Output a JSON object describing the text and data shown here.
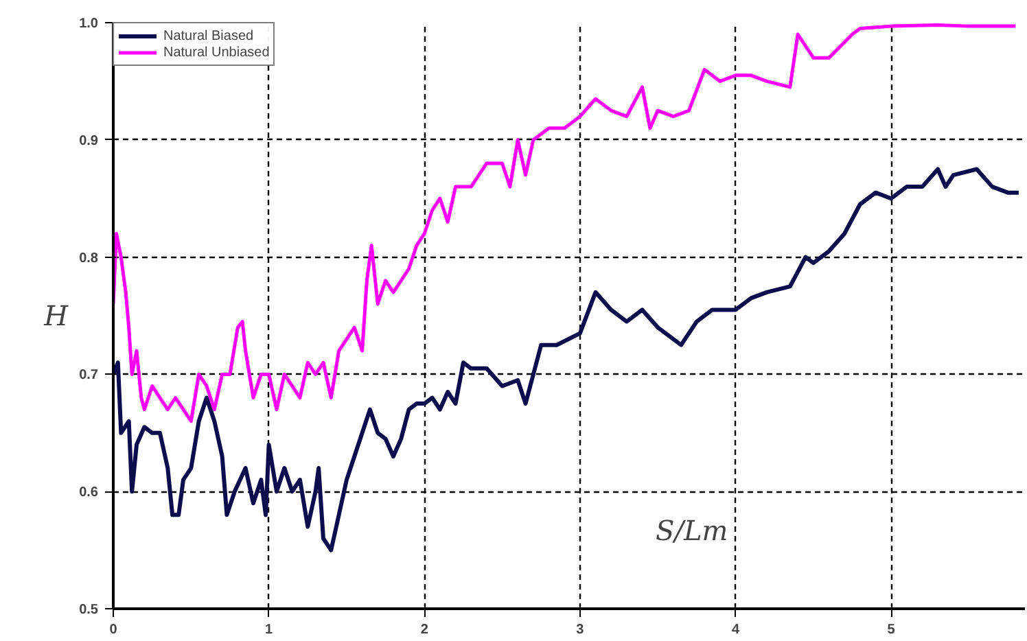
{
  "chart_data": {
    "type": "line",
    "xlabel": "S/Lm",
    "ylabel": "H",
    "xlim": [
      0,
      5.86
    ],
    "ylim": [
      0.5,
      1.0
    ],
    "xticks": [
      0,
      1,
      2,
      3,
      4,
      5
    ],
    "yticks": [
      {
        "value": 0.5,
        "label": "0.5"
      },
      {
        "value": 0.6,
        "label": "0.6"
      },
      {
        "value": 0.7,
        "label": "0.7"
      },
      {
        "value": 0.8,
        "label": "0.8"
      },
      {
        "value": 0.9,
        "label": "0.9"
      },
      {
        "value": 1,
        "label": "1.0"
      }
    ],
    "grid": true,
    "legend": "top left",
    "marker": "none",
    "line_style": "solid",
    "series": [
      {
        "name": "Natural Biased",
        "color": "#0d0d4d",
        "x": [
          0,
          0.03,
          0.05,
          0.1,
          0.12,
          0.15,
          0.2,
          0.25,
          0.3,
          0.35,
          0.38,
          0.42,
          0.45,
          0.5,
          0.55,
          0.6,
          0.65,
          0.7,
          0.73,
          0.78,
          0.85,
          0.9,
          0.95,
          0.98,
          1.0,
          1.05,
          1.1,
          1.15,
          1.2,
          1.25,
          1.3,
          1.32,
          1.35,
          1.4,
          1.45,
          1.5,
          1.55,
          1.6,
          1.65,
          1.7,
          1.75,
          1.8,
          1.85,
          1.9,
          1.95,
          2.0,
          2.05,
          2.1,
          2.15,
          2.2,
          2.25,
          2.3,
          2.4,
          2.5,
          2.6,
          2.65,
          2.7,
          2.75,
          2.85,
          3.0,
          3.1,
          3.2,
          3.3,
          3.4,
          3.5,
          3.6,
          3.65,
          3.75,
          3.85,
          4.0,
          4.1,
          4.2,
          4.35,
          4.45,
          4.5,
          4.6,
          4.7,
          4.8,
          4.9,
          5.0,
          5.1,
          5.2,
          5.3,
          5.35,
          5.4,
          5.55,
          5.65,
          5.75,
          5.82
        ],
        "values": [
          0.7,
          0.71,
          0.65,
          0.66,
          0.6,
          0.64,
          0.655,
          0.65,
          0.65,
          0.62,
          0.58,
          0.58,
          0.61,
          0.62,
          0.66,
          0.68,
          0.66,
          0.63,
          0.58,
          0.6,
          0.62,
          0.59,
          0.61,
          0.58,
          0.64,
          0.6,
          0.62,
          0.6,
          0.61,
          0.57,
          0.6,
          0.62,
          0.56,
          0.55,
          0.58,
          0.61,
          0.63,
          0.65,
          0.67,
          0.65,
          0.645,
          0.63,
          0.645,
          0.67,
          0.675,
          0.675,
          0.68,
          0.67,
          0.685,
          0.675,
          0.71,
          0.705,
          0.705,
          0.69,
          0.695,
          0.675,
          0.7,
          0.725,
          0.725,
          0.735,
          0.77,
          0.755,
          0.745,
          0.755,
          0.74,
          0.73,
          0.725,
          0.745,
          0.755,
          0.755,
          0.765,
          0.77,
          0.775,
          0.8,
          0.795,
          0.805,
          0.82,
          0.845,
          0.855,
          0.85,
          0.86,
          0.86,
          0.875,
          0.86,
          0.87,
          0.875,
          0.86,
          0.855,
          0.855
        ]
      },
      {
        "name": "Natural Unbiased",
        "color": "#ff00ff",
        "x": [
          0,
          0.02,
          0.05,
          0.08,
          0.1,
          0.12,
          0.15,
          0.18,
          0.2,
          0.25,
          0.3,
          0.35,
          0.4,
          0.45,
          0.5,
          0.55,
          0.6,
          0.65,
          0.7,
          0.75,
          0.8,
          0.83,
          0.85,
          0.9,
          0.95,
          1.0,
          1.05,
          1.1,
          1.15,
          1.2,
          1.25,
          1.3,
          1.35,
          1.4,
          1.45,
          1.5,
          1.55,
          1.6,
          1.63,
          1.66,
          1.7,
          1.75,
          1.8,
          1.85,
          1.9,
          1.95,
          2.0,
          2.05,
          2.1,
          2.15,
          2.2,
          2.3,
          2.4,
          2.5,
          2.55,
          2.6,
          2.65,
          2.7,
          2.8,
          2.9,
          3.0,
          3.1,
          3.2,
          3.3,
          3.4,
          3.45,
          3.5,
          3.6,
          3.7,
          3.8,
          3.9,
          4.0,
          4.1,
          4.2,
          4.35,
          4.4,
          4.5,
          4.6,
          4.75,
          4.8,
          5.0,
          5.3,
          5.5,
          5.8
        ],
        "values": [
          0.76,
          0.82,
          0.8,
          0.77,
          0.74,
          0.7,
          0.72,
          0.68,
          0.67,
          0.69,
          0.68,
          0.67,
          0.68,
          0.67,
          0.66,
          0.7,
          0.69,
          0.67,
          0.7,
          0.7,
          0.74,
          0.745,
          0.72,
          0.68,
          0.7,
          0.7,
          0.67,
          0.7,
          0.69,
          0.68,
          0.71,
          0.7,
          0.71,
          0.68,
          0.72,
          0.73,
          0.74,
          0.72,
          0.78,
          0.81,
          0.76,
          0.78,
          0.77,
          0.78,
          0.79,
          0.81,
          0.82,
          0.84,
          0.85,
          0.83,
          0.86,
          0.86,
          0.88,
          0.88,
          0.86,
          0.9,
          0.87,
          0.9,
          0.91,
          0.91,
          0.92,
          0.935,
          0.925,
          0.92,
          0.945,
          0.91,
          0.925,
          0.92,
          0.925,
          0.96,
          0.95,
          0.955,
          0.955,
          0.95,
          0.945,
          0.99,
          0.97,
          0.97,
          0.99,
          0.995,
          0.997,
          0.998,
          0.997,
          0.997
        ]
      }
    ]
  }
}
